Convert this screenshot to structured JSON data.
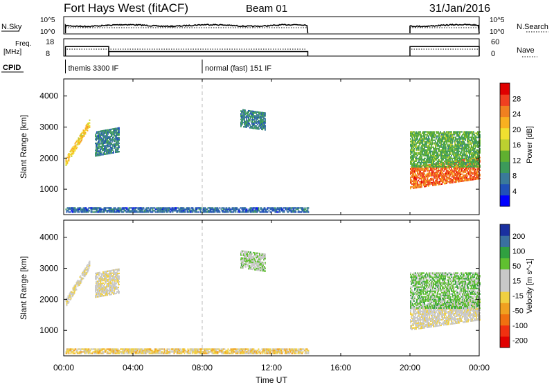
{
  "header": {
    "station": "Fort Hays West (fitACF)",
    "beam": "Beam 01",
    "date": "31/Jan/2016"
  },
  "status_panels": {
    "nsky_label": "N.Sky",
    "nsearch_label": "N.Search",
    "noise_left_ticks": [
      "10^5",
      "10^0"
    ],
    "noise_right_ticks": [
      "10^5",
      "10^0"
    ],
    "freq_label_1": "Freq.",
    "freq_label_2": "[MHz]",
    "freq_ticks": [
      "18",
      "8"
    ],
    "nave_label": "Nave",
    "nave_ticks": [
      "60",
      "0"
    ],
    "cpid_label": "CPID",
    "cpid_segments": [
      {
        "start": 0.1,
        "end": 8.0,
        "label": "themis 3300 IF"
      },
      {
        "start": 8.0,
        "end": 24.0,
        "label": "normal (fast) 151 IF"
      }
    ],
    "data_segments": [
      {
        "start": 0.1,
        "end": 14.1
      },
      {
        "start": 20.0,
        "end": 24.0
      }
    ],
    "freq_series": [
      {
        "start": 0.1,
        "end": 2.6,
        "mhz": 13.5
      },
      {
        "start": 2.6,
        "end": 14.1,
        "mhz": 10.6
      },
      {
        "start": 20.0,
        "end": 24.0,
        "mhz": 13.5
      }
    ]
  },
  "time_axis": {
    "title": "Time UT",
    "ticks": [
      "00:00",
      "04:00",
      "08:00",
      "12:00",
      "16:00",
      "20:00",
      "00:00"
    ],
    "tick_hours": [
      0,
      4,
      8,
      12,
      16,
      20,
      24
    ],
    "xlim": [
      0,
      24
    ]
  },
  "chart_data": [
    {
      "type": "heatmap",
      "title": "",
      "xlabel": "",
      "ylabel": "Slant Range [km]",
      "xlim": [
        0,
        24
      ],
      "ylim": [
        180,
        4550
      ],
      "yticks": [
        1000,
        2000,
        3000,
        4000
      ],
      "colorbar": {
        "label": "Power [dB]",
        "ticks": [
          "28",
          "24",
          "20",
          "16",
          "12",
          "8",
          "4"
        ],
        "tick_values": [
          28,
          24,
          20,
          16,
          12,
          8,
          4
        ],
        "range": [
          0,
          32
        ],
        "colors": [
          "#0000ff",
          "#2050b8",
          "#3a7a9a",
          "#3c9a5a",
          "#60b030",
          "#bcd030",
          "#f0e030",
          "#f8b020",
          "#f08020",
          "#f04020",
          "#e00000"
        ]
      },
      "regions": [
        {
          "name": "early-arc",
          "t_start": 0.1,
          "t_end": 1.5,
          "r_start": 1750,
          "r_end": 2000,
          "r_slope_per_h": 900,
          "value": 20
        },
        {
          "name": "early-arc-2",
          "t_start": 1.8,
          "t_end": 3.2,
          "r_start": 2050,
          "r_end": 2850,
          "r_slope_per_h": 100,
          "value": 8
        },
        {
          "name": "mid-patch",
          "t_start": 10.2,
          "t_end": 11.6,
          "r_start": 3000,
          "r_end": 3550,
          "r_slope_per_h": -80,
          "value": 8
        },
        {
          "name": "evening-band",
          "t_start": 20.0,
          "t_end": 24.0,
          "r_start": 1000,
          "r_end": 1700,
          "r_slope_per_h": 80,
          "value": 26
        },
        {
          "name": "evening-upper",
          "t_start": 20.0,
          "t_end": 24.0,
          "r_start": 1700,
          "r_end": 2850,
          "r_slope_per_h": 0,
          "value": 12
        },
        {
          "name": "ground-strip",
          "t_start": 0.1,
          "t_end": 14.1,
          "r_start": 240,
          "r_end": 380,
          "r_slope_per_h": 0,
          "value": 6
        }
      ]
    },
    {
      "type": "heatmap",
      "title": "",
      "xlabel": "Time UT",
      "ylabel": "Slant Range [km]",
      "xlim": [
        0,
        24
      ],
      "ylim": [
        180,
        4550
      ],
      "yticks": [
        1000,
        2000,
        3000,
        4000
      ],
      "colorbar": {
        "label": "Velocity [m s^-1]",
        "ticks": [
          "200",
          "100",
          "50",
          "15",
          "-15",
          "-50",
          "-100",
          "-200"
        ],
        "tick_values": [
          200,
          100,
          50,
          15,
          -15,
          -50,
          -100,
          -200
        ],
        "range": [
          -250,
          250
        ],
        "colors": [
          "#e00000",
          "#f03010",
          "#f07010",
          "#f0a020",
          "#f0d040",
          "#c8c8c8",
          "#c8c8c8",
          "#60c030",
          "#30a040",
          "#3a70a0",
          "#1a30a0"
        ]
      },
      "regions": [
        {
          "name": "early-arc",
          "t_start": 0.1,
          "t_end": 1.5,
          "r_start": 1750,
          "r_end": 2000,
          "r_slope_per_h": 900,
          "value": 0
        },
        {
          "name": "early-arc-2",
          "t_start": 1.8,
          "t_end": 3.2,
          "r_start": 2050,
          "r_end": 2850,
          "r_slope_per_h": 100,
          "value": 0
        },
        {
          "name": "mid-patch",
          "t_start": 10.2,
          "t_end": 11.6,
          "r_start": 3000,
          "r_end": 3550,
          "r_slope_per_h": -80,
          "value": 60
        },
        {
          "name": "evening-band",
          "t_start": 20.0,
          "t_end": 24.0,
          "r_start": 1000,
          "r_end": 1700,
          "r_slope_per_h": 80,
          "value": 0
        },
        {
          "name": "evening-upper",
          "t_start": 20.0,
          "t_end": 24.0,
          "r_start": 1700,
          "r_end": 2850,
          "r_slope_per_h": 0,
          "value": 80
        },
        {
          "name": "ground-strip",
          "t_start": 0.1,
          "t_end": 14.1,
          "r_start": 240,
          "r_end": 380,
          "r_slope_per_h": 0,
          "value": -40
        }
      ]
    }
  ]
}
